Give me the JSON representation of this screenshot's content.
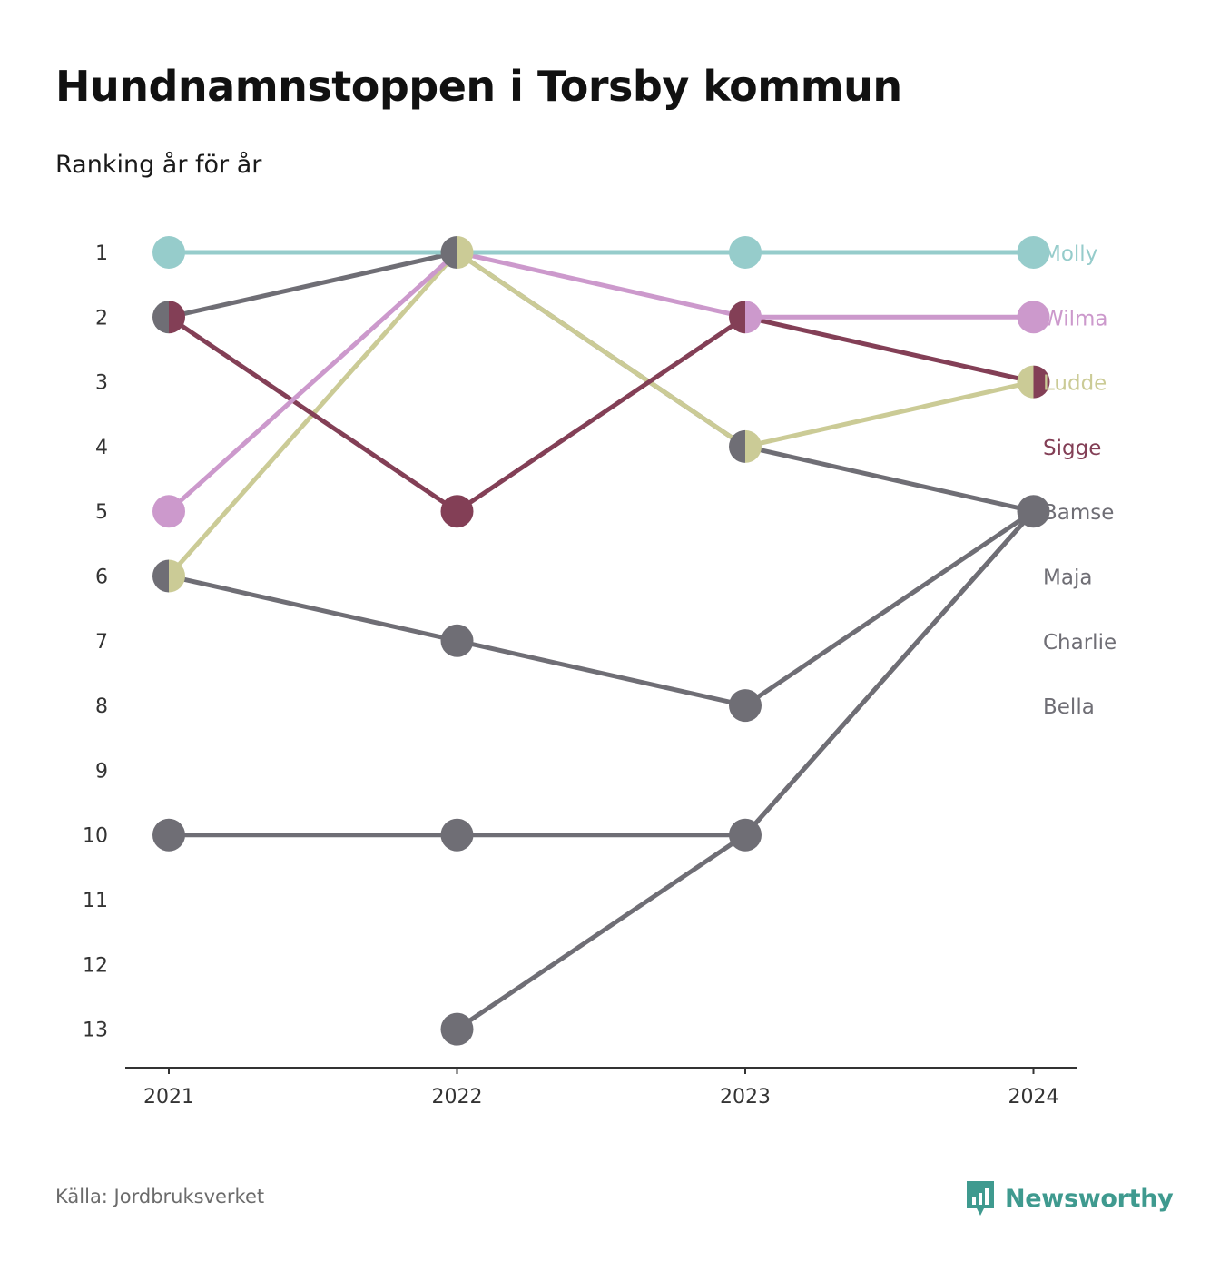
{
  "chart_data": {
    "type": "line",
    "chart_subtype": "bump",
    "title": "Hundnamnstoppen i Torsby kommun",
    "subtitle": "Ranking år för år",
    "x": [
      "2021",
      "2022",
      "2023",
      "2024"
    ],
    "y_ticks": [
      "1",
      "2",
      "3",
      "4",
      "5",
      "6",
      "7",
      "8",
      "9",
      "10",
      "11",
      "12",
      "13"
    ],
    "ylim": [
      1,
      13
    ],
    "y_reversed": true,
    "grid": false,
    "series": [
      {
        "name": "Bella",
        "color": "#6f6e75",
        "values": [
          null,
          13,
          10,
          5
        ]
      },
      {
        "name": "Charlie",
        "color": "#6f6e75",
        "values": [
          10,
          10,
          10,
          5
        ]
      },
      {
        "name": "Maja",
        "color": "#6f6e75",
        "values": [
          6,
          7,
          8,
          5
        ]
      },
      {
        "name": "Bamse",
        "color": "#6f6e75",
        "values": [
          2,
          1,
          4,
          5
        ]
      },
      {
        "name": "Ludde",
        "color": "#cbcb96",
        "values": [
          6,
          1,
          4,
          3
        ]
      },
      {
        "name": "Sigge",
        "color": "#833f56",
        "values": [
          2,
          5,
          2,
          3
        ]
      },
      {
        "name": "Wilma",
        "color": "#cc99cc",
        "values": [
          5,
          1,
          2,
          2
        ]
      },
      {
        "name": "Molly",
        "color": "#96cccb",
        "values": [
          1,
          1,
          1,
          1
        ]
      }
    ],
    "labels": [
      {
        "name": "Molly",
        "rank": 1,
        "color": "#96cccb"
      },
      {
        "name": "Wilma",
        "rank": 2,
        "color": "#cc99cc"
      },
      {
        "name": "Ludde",
        "rank": 3,
        "color": "#cbcb96"
      },
      {
        "name": "Sigge",
        "rank": 4,
        "color": "#833f56"
      },
      {
        "name": "Bamse",
        "rank": 5,
        "color": "#6f6e75"
      },
      {
        "name": "Maja",
        "rank": 6,
        "color": "#6f6e75"
      },
      {
        "name": "Charlie",
        "rank": 7,
        "color": "#6f6e75"
      },
      {
        "name": "Bella",
        "rank": 8,
        "color": "#6f6e75"
      }
    ]
  },
  "footer": {
    "source": "Källa: Jordbruksverket",
    "brand": "Newsworthy",
    "brand_color": "#3f9a8f"
  }
}
